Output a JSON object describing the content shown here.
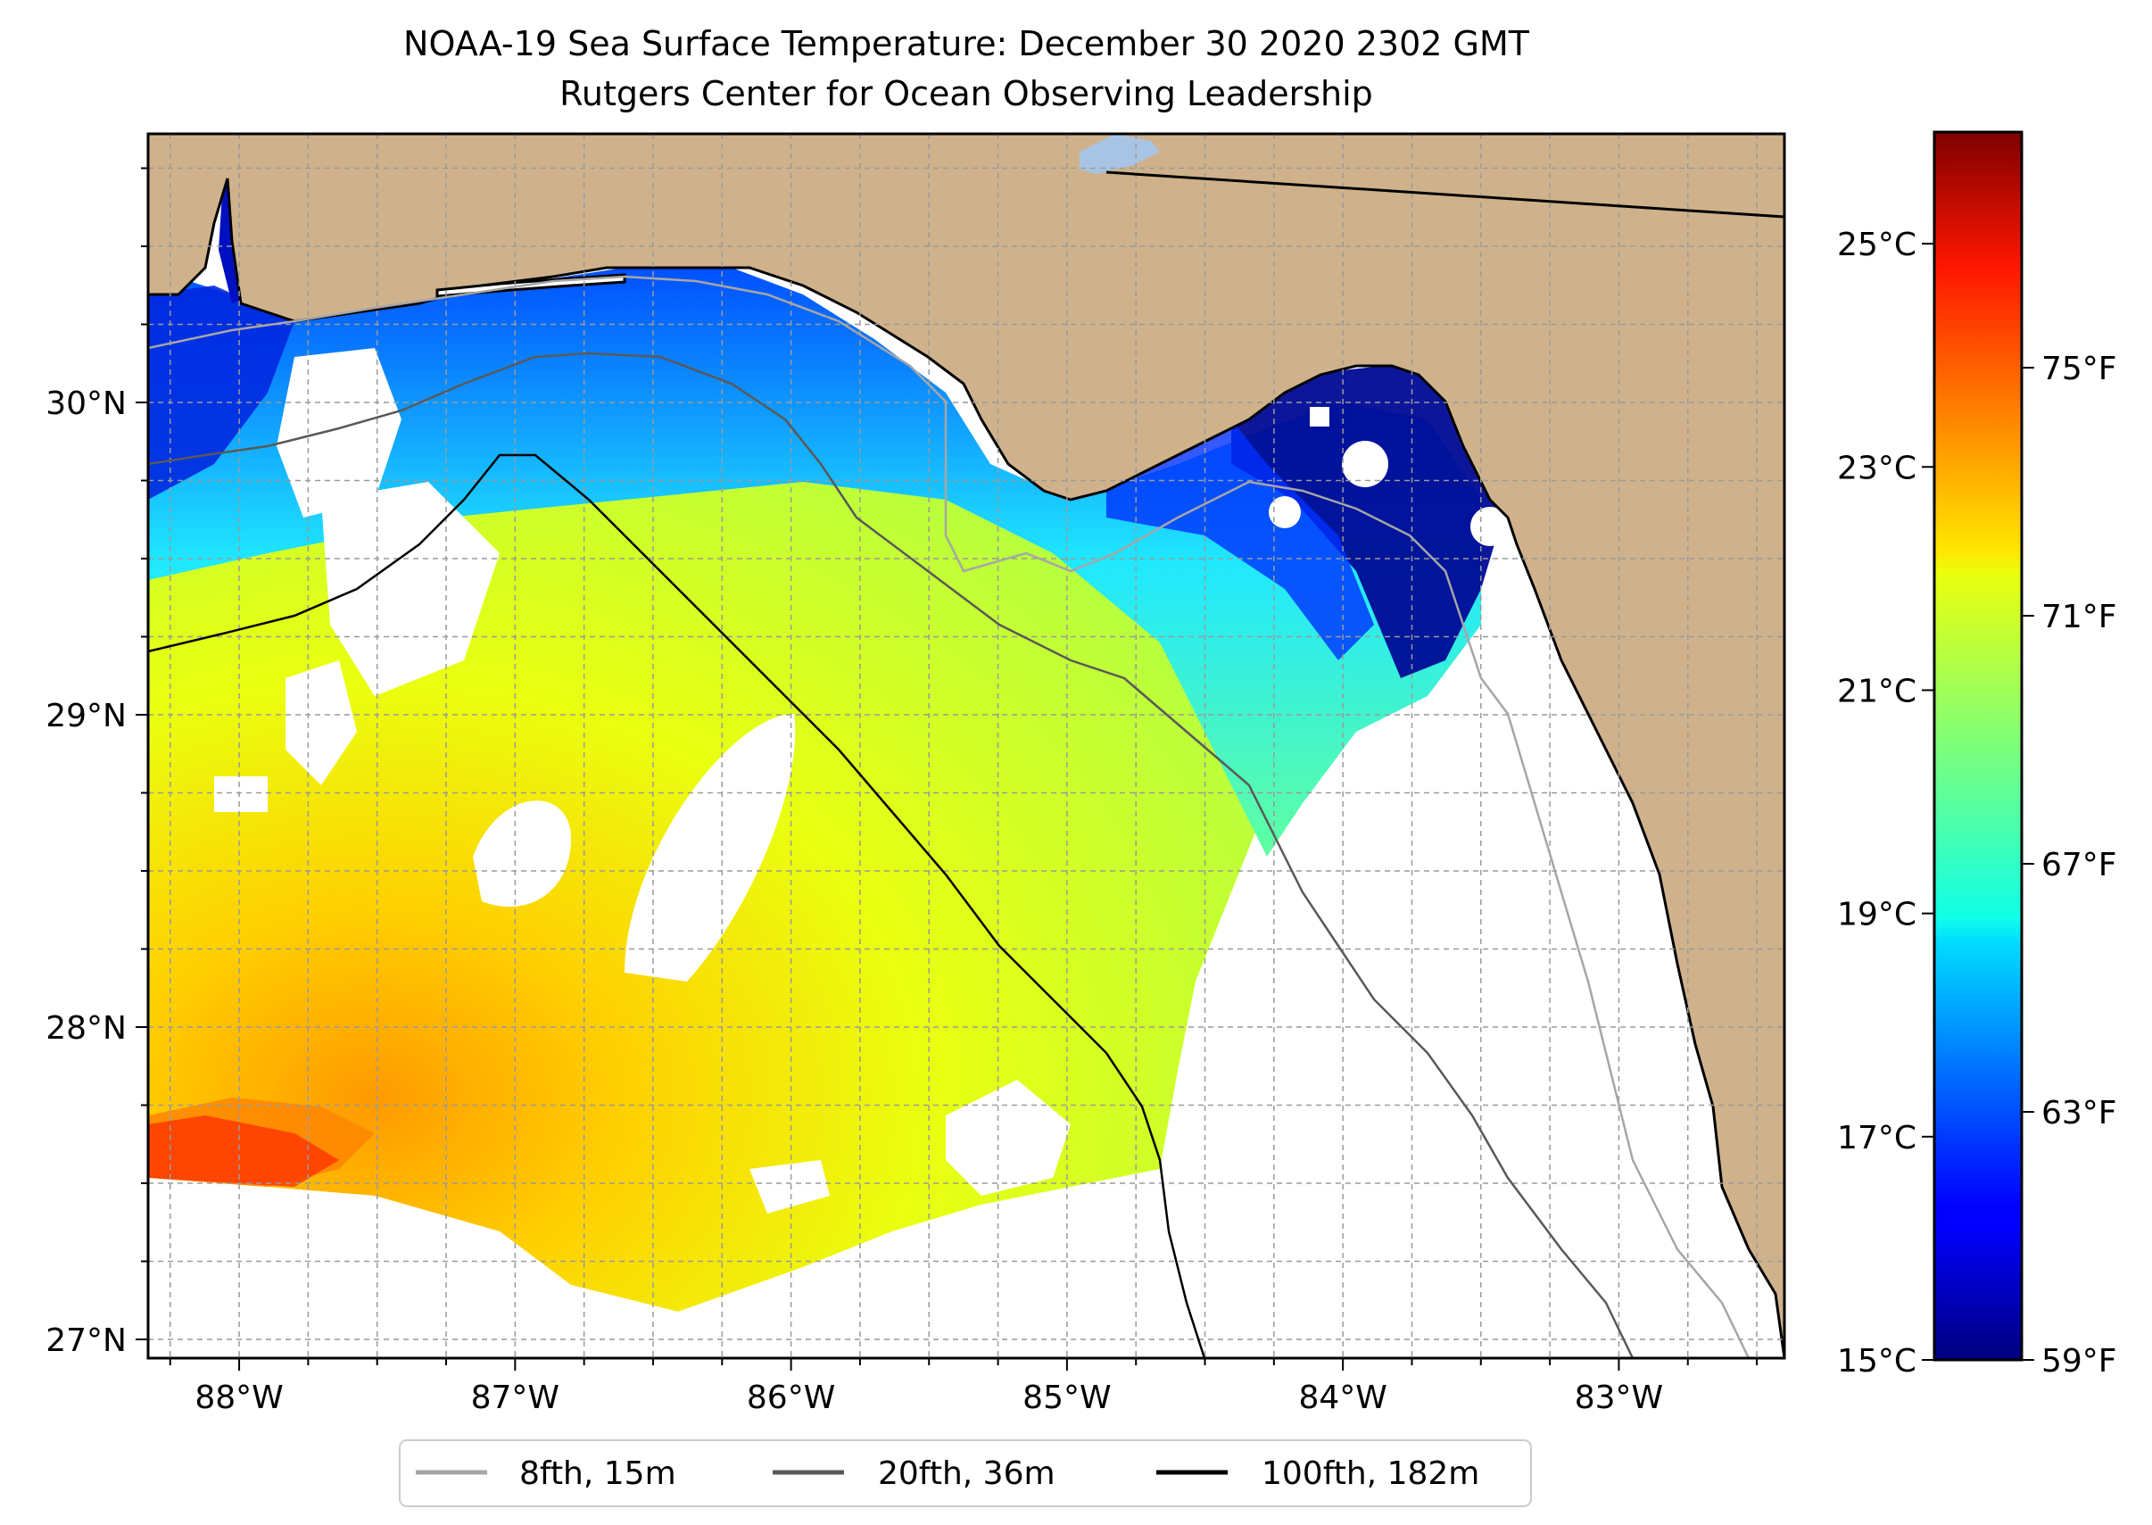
{
  "title": {
    "line1": "NOAA-19 Sea Surface Temperature: December 30 2020 2302 GMT",
    "line2": "Rutgers Center for Ocean Observing Leadership"
  },
  "map": {
    "lon_range": [
      -88.33,
      -82.4
    ],
    "lat_range": [
      26.94,
      30.86
    ],
    "x_ticks": [
      {
        "value": -88,
        "label": "88°W"
      },
      {
        "value": -87,
        "label": "87°W"
      },
      {
        "value": -86,
        "label": "86°W"
      },
      {
        "value": -85,
        "label": "85°W"
      },
      {
        "value": -84,
        "label": "84°W"
      },
      {
        "value": -83,
        "label": "83°W"
      }
    ],
    "y_ticks": [
      {
        "value": 27,
        "label": "27°N"
      },
      {
        "value": 28,
        "label": "28°N"
      },
      {
        "value": 29,
        "label": "29°N"
      },
      {
        "value": 30,
        "label": "30°N"
      }
    ],
    "minor_step_deg": 0.25,
    "gridlines": "dashed",
    "land_color": "#cfb28b",
    "coast_color": "#000000",
    "missing_data_color": "#ffffff"
  },
  "legend": {
    "placement": "below-map",
    "items": [
      {
        "label": "8fth, 15m",
        "color": "#a6a6a6"
      },
      {
        "label": "20fth, 36m",
        "color": "#595959"
      },
      {
        "label": "100fth, 182m",
        "color": "#000000"
      }
    ]
  },
  "colorbar": {
    "colormap": "jet",
    "celsius_range": [
      15,
      26
    ],
    "left_ticks": [
      {
        "value": 15,
        "label": "15°C"
      },
      {
        "value": 17,
        "label": "17°C"
      },
      {
        "value": 19,
        "label": "19°C"
      },
      {
        "value": 21,
        "label": "21°C"
      },
      {
        "value": 23,
        "label": "23°C"
      },
      {
        "value": 25,
        "label": "25°C"
      }
    ],
    "right_ticks": [
      {
        "value": 59,
        "label": "59°F"
      },
      {
        "value": 63,
        "label": "63°F"
      },
      {
        "value": 67,
        "label": "67°F"
      },
      {
        "value": 71,
        "label": "71°F"
      },
      {
        "value": 75,
        "label": "75°F"
      }
    ]
  }
}
